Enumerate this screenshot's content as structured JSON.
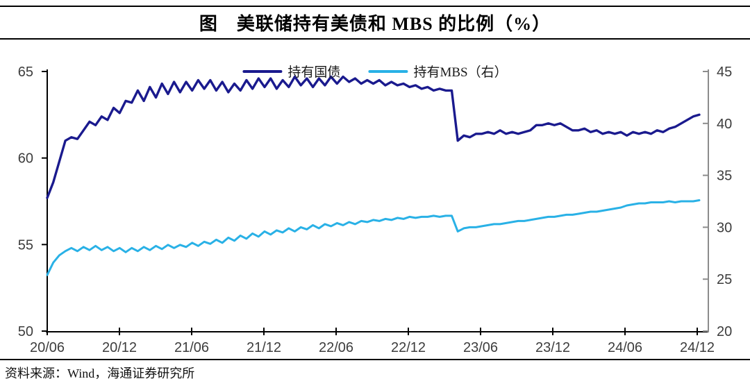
{
  "title": "图　美联储持有美债和 MBS 的比例（%）",
  "source": "资料来源：Wind，海通证券研究所",
  "legend": {
    "treasury_label": "持有国债",
    "mbs_label": "持有MBS（右）"
  },
  "colors": {
    "treasury": "#1a1a8e",
    "mbs": "#29b1e6",
    "left_axis": "#000000",
    "right_axis": "#8c8c8c",
    "tick_text": "#3d3d3d"
  },
  "chart_data": {
    "type": "line",
    "title": "图　美联储持有美债和 MBS 的比例（%）",
    "x_tick_labels": [
      "20/06",
      "20/12",
      "21/06",
      "21/12",
      "22/06",
      "22/12",
      "23/06",
      "23/12",
      "24/06",
      "24/12"
    ],
    "x_unit": "months since 2020-06, sampled every 0.5 month",
    "x_start_month": 0,
    "x_step_months": 0.5,
    "x_total_months": 54,
    "left_axis": {
      "min": 50,
      "max": 65,
      "ticks": [
        65,
        60,
        55,
        50
      ]
    },
    "right_axis": {
      "min": 20,
      "max": 45,
      "ticks": [
        45,
        40,
        35,
        30,
        25,
        20
      ]
    },
    "grid": false,
    "legend_position": "top-center",
    "series": [
      {
        "name": "持有国债",
        "axis": "left",
        "color": "#1a1a8e",
        "values": [
          57.7,
          58.6,
          59.8,
          61.0,
          61.2,
          61.1,
          61.6,
          62.1,
          61.9,
          62.4,
          62.2,
          62.9,
          62.6,
          63.3,
          63.2,
          63.9,
          63.3,
          64.1,
          63.5,
          64.3,
          63.7,
          64.4,
          63.8,
          64.4,
          63.9,
          64.5,
          64.0,
          64.5,
          63.9,
          64.4,
          63.8,
          64.3,
          63.9,
          64.5,
          64.0,
          64.6,
          64.1,
          64.6,
          64.0,
          64.5,
          64.1,
          64.7,
          64.2,
          64.6,
          64.1,
          64.6,
          64.2,
          64.7,
          64.3,
          64.7,
          64.4,
          64.6,
          64.3,
          64.5,
          64.3,
          64.5,
          64.2,
          64.4,
          64.2,
          64.3,
          64.1,
          64.2,
          64.0,
          64.1,
          63.9,
          64.0,
          63.9,
          63.9,
          61.0,
          61.3,
          61.2,
          61.4,
          61.4,
          61.5,
          61.4,
          61.6,
          61.4,
          61.5,
          61.4,
          61.5,
          61.6,
          61.9,
          61.9,
          62.0,
          61.9,
          62.0,
          61.8,
          61.6,
          61.6,
          61.7,
          61.5,
          61.6,
          61.4,
          61.5,
          61.4,
          61.5,
          61.3,
          61.5,
          61.4,
          61.5,
          61.4,
          61.6,
          61.5,
          61.7,
          61.8,
          62.0,
          62.2,
          62.4,
          62.5
        ]
      },
      {
        "name": "持有MBS（右）",
        "axis": "right",
        "color": "#29b1e6",
        "values": [
          25.4,
          26.6,
          27.3,
          27.7,
          28.0,
          27.7,
          28.1,
          27.8,
          28.2,
          27.8,
          28.1,
          27.7,
          28.0,
          27.6,
          28.0,
          27.7,
          28.1,
          27.8,
          28.2,
          27.9,
          28.3,
          28.0,
          28.3,
          28.1,
          28.5,
          28.2,
          28.6,
          28.4,
          28.8,
          28.5,
          29.0,
          28.7,
          29.2,
          28.9,
          29.4,
          29.1,
          29.6,
          29.3,
          29.7,
          29.5,
          29.9,
          29.6,
          30.0,
          29.8,
          30.2,
          29.9,
          30.3,
          30.1,
          30.4,
          30.2,
          30.5,
          30.3,
          30.6,
          30.5,
          30.7,
          30.6,
          30.8,
          30.7,
          30.9,
          30.8,
          31.0,
          30.9,
          31.0,
          31.0,
          31.1,
          31.0,
          31.1,
          31.1,
          29.6,
          29.9,
          30.0,
          30.0,
          30.1,
          30.2,
          30.3,
          30.3,
          30.4,
          30.5,
          30.6,
          30.6,
          30.7,
          30.8,
          30.9,
          31.0,
          31.0,
          31.1,
          31.2,
          31.2,
          31.3,
          31.4,
          31.5,
          31.5,
          31.6,
          31.7,
          31.8,
          31.9,
          32.1,
          32.2,
          32.3,
          32.3,
          32.4,
          32.4,
          32.4,
          32.5,
          32.4,
          32.5,
          32.5,
          32.5,
          32.6
        ]
      }
    ]
  }
}
